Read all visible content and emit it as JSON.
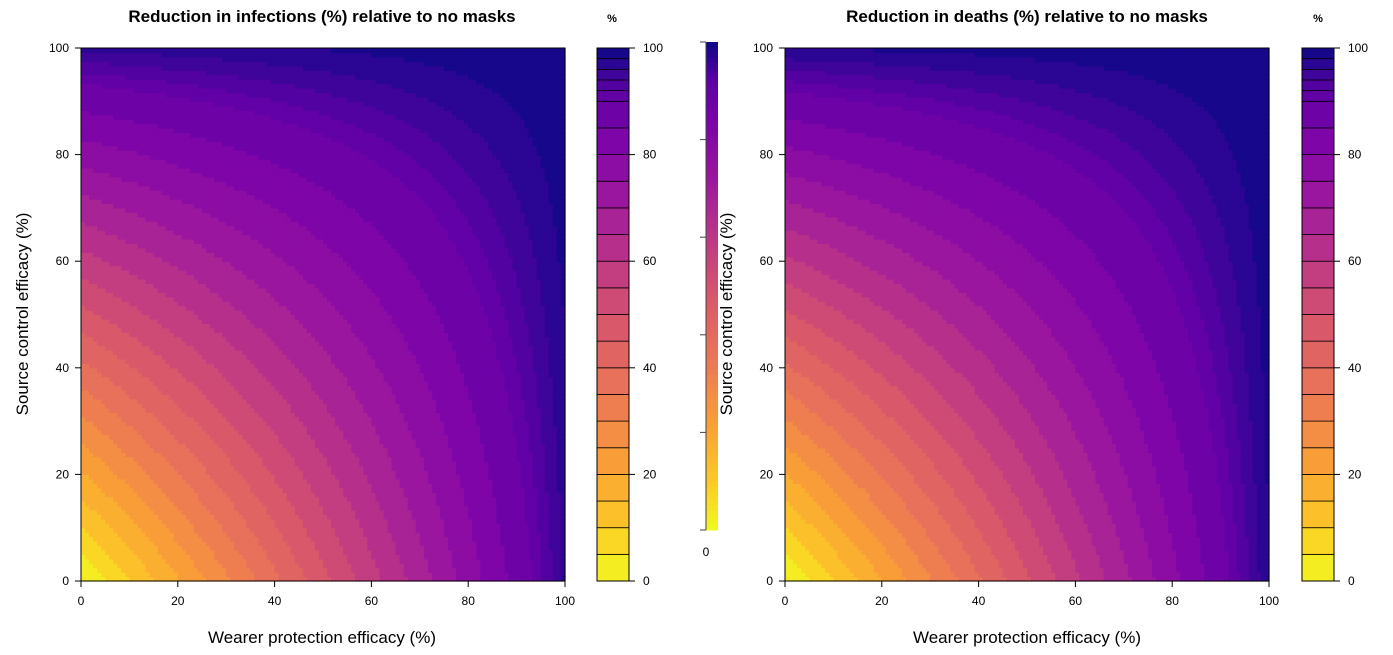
{
  "chart_data": [
    {
      "type": "heatmap",
      "title": "Reduction in infections (%) relative to no masks",
      "xlabel": "Wearer protection efficacy (%)",
      "ylabel": "Source control efficacy (%)",
      "xlim": [
        0,
        100
      ],
      "ylim": [
        0,
        100
      ],
      "x_ticks": [
        "0",
        "20",
        "40",
        "60",
        "80",
        "100"
      ],
      "y_ticks": [
        "0",
        "20",
        "40",
        "60",
        "80",
        "100"
      ],
      "model": "reduction = 100*(1-(1-a*x)*(1-a*y)), x,y efficacy fractions",
      "max_value": 93,
      "contour_levels": [
        0,
        5,
        10,
        15,
        20,
        25,
        30,
        35,
        40,
        45,
        50,
        55,
        60,
        65,
        70,
        75,
        80,
        85,
        90,
        92,
        94,
        96,
        98,
        100
      ],
      "colorbar": {
        "label": "%",
        "ticks": [
          "0",
          "20",
          "40",
          "60",
          "80",
          "100"
        ],
        "range": [
          0,
          100
        ],
        "colormap": "plasma-reversed"
      },
      "grid": false,
      "legend": "right"
    },
    {
      "type": "heatmap",
      "title": "Reduction in deaths (%) relative to no masks",
      "xlabel": "Wearer protection efficacy (%)",
      "ylabel": "Source control efficacy (%)",
      "xlim": [
        0,
        100
      ],
      "ylim": [
        0,
        100
      ],
      "x_ticks": [
        "0",
        "20",
        "40",
        "60",
        "80",
        "100"
      ],
      "y_ticks": [
        "0",
        "20",
        "40",
        "60",
        "80",
        "100"
      ],
      "model": "reduction = 100*(1-(1-a*x)*(1-a*y)), x,y efficacy fractions",
      "max_value": 96,
      "contour_levels": [
        0,
        5,
        10,
        15,
        20,
        25,
        30,
        35,
        40,
        45,
        50,
        55,
        60,
        65,
        70,
        75,
        80,
        85,
        90,
        92,
        94,
        96,
        98,
        100
      ],
      "colorbar": {
        "label": "%",
        "ticks": [
          "0",
          "20",
          "40",
          "60",
          "80",
          "100"
        ],
        "range": [
          0,
          100
        ],
        "colormap": "plasma-reversed"
      },
      "grid": false,
      "legend": "right"
    }
  ],
  "middle_colorbar": {
    "tick": "0",
    "colormap": "plasma-reversed"
  }
}
